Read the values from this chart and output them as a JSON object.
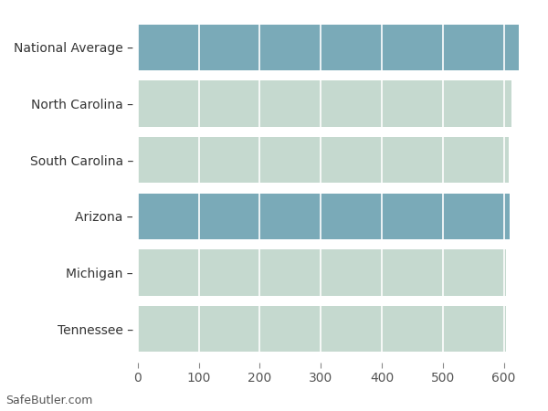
{
  "categories": [
    "Tennessee",
    "Michigan",
    "Arizona",
    "South Carolina",
    "North Carolina",
    "National Average"
  ],
  "values": [
    604,
    604,
    610,
    608,
    612,
    625
  ],
  "bar_colors": [
    "#c5d9cf",
    "#c5d9cf",
    "#7aaab8",
    "#c5d9cf",
    "#c5d9cf",
    "#7aaab8"
  ],
  "background_color": "#ffffff",
  "xlim": [
    0,
    650
  ],
  "xticks": [
    0,
    100,
    200,
    300,
    400,
    500,
    600
  ],
  "watermark": "SafeButler.com",
  "bar_height": 0.82,
  "tick_labels": [
    "Tennessee –",
    "Michigan –",
    "Arizona –",
    "South Carolina –",
    "North Carolina –",
    "National Average –"
  ]
}
